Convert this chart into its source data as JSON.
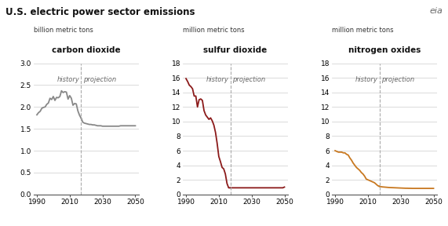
{
  "title": "U.S. electric power sector emissions",
  "panels": [
    {
      "unit_label": "billion metric tons",
      "subtitle": "carbon dioxide",
      "color": "#888888",
      "ylim": [
        0,
        3.0
      ],
      "yticks": [
        0.0,
        0.5,
        1.0,
        1.5,
        2.0,
        2.5,
        3.0
      ],
      "history_end": 2017,
      "history_x": [
        1990,
        1991,
        1992,
        1993,
        1994,
        1995,
        1996,
        1997,
        1998,
        1999,
        2000,
        2001,
        2002,
        2003,
        2004,
        2005,
        2006,
        2007,
        2008,
        2009,
        2010,
        2011,
        2012,
        2013,
        2014,
        2015,
        2016,
        2017
      ],
      "history_y": [
        1.82,
        1.87,
        1.9,
        1.97,
        1.99,
        2.0,
        2.06,
        2.09,
        2.2,
        2.17,
        2.24,
        2.15,
        2.22,
        2.21,
        2.24,
        2.37,
        2.33,
        2.35,
        2.34,
        2.18,
        2.26,
        2.2,
        2.04,
        2.08,
        2.07,
        1.91,
        1.81,
        1.74
      ],
      "proj_x": [
        2017,
        2018,
        2019,
        2020,
        2021,
        2022,
        2023,
        2024,
        2025,
        2026,
        2027,
        2028,
        2029,
        2030,
        2031,
        2032,
        2033,
        2034,
        2035,
        2036,
        2037,
        2038,
        2039,
        2040,
        2041,
        2042,
        2043,
        2044,
        2045,
        2046,
        2047,
        2048,
        2049,
        2050
      ],
      "proj_y": [
        1.74,
        1.65,
        1.63,
        1.62,
        1.61,
        1.6,
        1.6,
        1.59,
        1.59,
        1.58,
        1.57,
        1.57,
        1.57,
        1.56,
        1.56,
        1.56,
        1.56,
        1.56,
        1.56,
        1.56,
        1.56,
        1.56,
        1.56,
        1.56,
        1.57,
        1.57,
        1.57,
        1.57,
        1.57,
        1.57,
        1.57,
        1.57,
        1.57,
        1.57
      ]
    },
    {
      "unit_label": "million metric tons",
      "subtitle": "sulfur dioxide",
      "color": "#8B1A1A",
      "ylim": [
        0,
        18
      ],
      "yticks": [
        0,
        2,
        4,
        6,
        8,
        10,
        12,
        14,
        16,
        18
      ],
      "history_end": 2017,
      "history_x": [
        1990,
        1991,
        1992,
        1993,
        1994,
        1995,
        1996,
        1997,
        1998,
        1999,
        2000,
        2001,
        2002,
        2003,
        2004,
        2005,
        2006,
        2007,
        2008,
        2009,
        2010,
        2011,
        2012,
        2013,
        2014,
        2015,
        2016,
        2017
      ],
      "history_y": [
        15.9,
        15.5,
        15.0,
        14.8,
        14.5,
        13.5,
        13.5,
        12.0,
        13.0,
        13.1,
        12.9,
        11.5,
        10.9,
        10.6,
        10.3,
        10.5,
        10.1,
        9.5,
        8.5,
        7.0,
        5.2,
        4.5,
        3.7,
        3.5,
        2.8,
        1.5,
        0.9,
        0.9
      ],
      "proj_x": [
        2017,
        2018,
        2019,
        2020,
        2021,
        2022,
        2023,
        2024,
        2025,
        2026,
        2027,
        2028,
        2029,
        2030,
        2031,
        2032,
        2033,
        2034,
        2035,
        2036,
        2037,
        2038,
        2039,
        2040,
        2041,
        2042,
        2043,
        2044,
        2045,
        2046,
        2047,
        2048,
        2049,
        2050
      ],
      "proj_y": [
        0.9,
        0.9,
        0.9,
        0.9,
        0.9,
        0.9,
        0.9,
        0.9,
        0.9,
        0.9,
        0.9,
        0.9,
        0.9,
        0.9,
        0.9,
        0.9,
        0.9,
        0.9,
        0.9,
        0.9,
        0.9,
        0.9,
        0.9,
        0.9,
        0.9,
        0.9,
        0.9,
        0.9,
        0.9,
        0.9,
        0.9,
        0.9,
        0.9,
        1.0
      ]
    },
    {
      "unit_label": "million metric tons",
      "subtitle": "nitrogen oxides",
      "color": "#C87820",
      "ylim": [
        0,
        18
      ],
      "yticks": [
        0,
        2,
        4,
        6,
        8,
        10,
        12,
        14,
        16,
        18
      ],
      "history_end": 2017,
      "history_x": [
        1990,
        1991,
        1992,
        1993,
        1994,
        1995,
        1996,
        1997,
        1998,
        1999,
        2000,
        2001,
        2002,
        2003,
        2004,
        2005,
        2006,
        2007,
        2008,
        2009,
        2010,
        2011,
        2012,
        2013,
        2014,
        2015,
        2016,
        2017
      ],
      "history_y": [
        6.0,
        5.9,
        5.8,
        5.8,
        5.8,
        5.7,
        5.7,
        5.5,
        5.4,
        5.0,
        4.7,
        4.3,
        4.0,
        3.7,
        3.5,
        3.3,
        3.0,
        2.8,
        2.5,
        2.1,
        2.0,
        1.9,
        1.8,
        1.7,
        1.6,
        1.4,
        1.2,
        1.1
      ],
      "proj_x": [
        2017,
        2018,
        2019,
        2020,
        2021,
        2022,
        2023,
        2024,
        2025,
        2026,
        2027,
        2028,
        2029,
        2030,
        2031,
        2032,
        2033,
        2034,
        2035,
        2036,
        2037,
        2038,
        2039,
        2040,
        2041,
        2042,
        2043,
        2044,
        2045,
        2046,
        2047,
        2048,
        2049,
        2050
      ],
      "proj_y": [
        1.1,
        1.05,
        1.02,
        1.0,
        0.98,
        0.96,
        0.94,
        0.93,
        0.92,
        0.91,
        0.9,
        0.89,
        0.88,
        0.87,
        0.86,
        0.85,
        0.84,
        0.84,
        0.83,
        0.83,
        0.82,
        0.82,
        0.82,
        0.82,
        0.82,
        0.82,
        0.82,
        0.82,
        0.82,
        0.82,
        0.82,
        0.82,
        0.82,
        0.82
      ]
    }
  ],
  "bg_color": "#ffffff",
  "grid_color": "#cccccc",
  "dashed_line_color": "#aaaaaa",
  "history_label": "history",
  "projection_label": "projection",
  "xlabel_ticks": [
    1990,
    2010,
    2030,
    2050
  ],
  "xlim": [
    1988,
    2052
  ]
}
